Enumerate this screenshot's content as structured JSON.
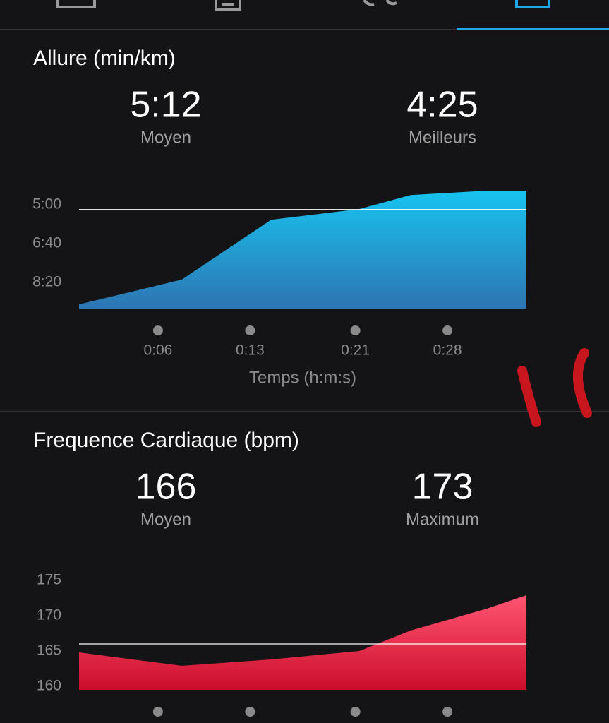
{
  "chart_data": [
    {
      "type": "area",
      "title": "Allure (min/km)",
      "stats": [
        {
          "value": 5.2,
          "label": "5:12",
          "name": "Moyen"
        },
        {
          "value": 4.417,
          "label": "4:25",
          "name": "Meilleurs"
        }
      ],
      "x": [
        0,
        7.8,
        14.6,
        21.3,
        25.2,
        31.0,
        34
      ],
      "values": [
        9.27,
        8.21,
        5.64,
        5.18,
        4.58,
        4.39,
        4.39
      ],
      "xlim": [
        0,
        34
      ],
      "xticks": [
        {
          "value": 6,
          "label": "0:06"
        },
        {
          "value": 13,
          "label": "0:13"
        },
        {
          "value": 21,
          "label": "0:21"
        },
        {
          "value": 28,
          "label": "0:28"
        }
      ],
      "xlabel": "Temps (h:m:s)",
      "ylim": [
        9.45,
        4.39
      ],
      "yticks": [
        {
          "value": 5,
          "label": "5:00"
        },
        {
          "value": 6.667,
          "label": "6:40"
        },
        {
          "value": 8.333,
          "label": "8:20"
        }
      ],
      "gradient": [
        "#18c3f0",
        "#2e75b2"
      ]
    },
    {
      "type": "area",
      "title": "Frequence Cardiaque (bpm)",
      "stats": [
        {
          "value": 166,
          "name": "Moyen"
        },
        {
          "value": 173,
          "name": "Maximum"
        }
      ],
      "x": [
        0,
        7.8,
        14.6,
        21.3,
        25.2,
        31.0,
        34
      ],
      "values": [
        164.8,
        162.9,
        163.8,
        165.0,
        167.9,
        171.0,
        172.9
      ],
      "xlim": [
        0,
        34
      ],
      "xticks": [
        6,
        13,
        21,
        28
      ],
      "ylim": [
        159.5,
        176
      ],
      "yticks": [
        160,
        165,
        170,
        175
      ],
      "gradient": [
        "#ff5673",
        "#cc0d2c"
      ]
    }
  ]
}
